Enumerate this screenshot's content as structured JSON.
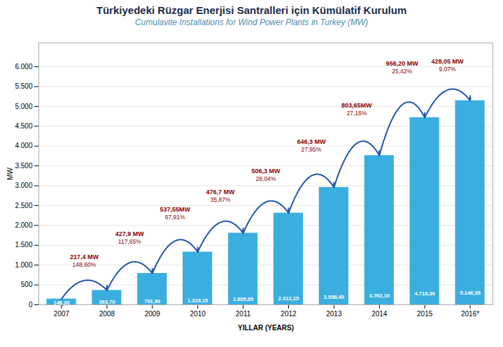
{
  "chart_data": {
    "type": "bar",
    "title": "Türkiyedeki Rüzgar Enerjisi Santralleri için Kümülatif Kurulum",
    "subtitle": "Cumulavite Installations for Wind Power Plants in Turkey (MW)",
    "xlabel": "YILLAR (YEARS)",
    "ylabel": "MW",
    "categories": [
      "2007",
      "2008",
      "2009",
      "2010",
      "2011",
      "2012",
      "2013",
      "2014",
      "2015",
      "2016*"
    ],
    "values": [
      146.3,
      363.7,
      791.6,
      1329.15,
      1805.85,
      2312.15,
      2958.45,
      3762.1,
      4718.3,
      5146.35
    ],
    "value_labels": [
      "146,30",
      "363,70",
      "791,60",
      "1.329,15",
      "1.805,85",
      "2.312,15",
      "2.958,45",
      "3.762,10",
      "4.718,30",
      "5.146,35"
    ],
    "data_labels": true,
    "color": "#3BAEE0",
    "ylim": [
      0,
      6600
    ],
    "yticks": [
      0,
      500,
      {
        "value": 1000,
        "label": "1.000"
      },
      {
        "value": 1500,
        "label": "1.500"
      },
      {
        "value": 2000,
        "label": "2.000"
      },
      {
        "value": 2500,
        "label": "2.500"
      },
      {
        "value": 3000,
        "label": "3.000"
      },
      {
        "value": 3500,
        "label": "3.500"
      },
      {
        "value": 4000,
        "label": "4.000"
      },
      {
        "value": 4500,
        "label": "4.500"
      },
      {
        "value": 5000,
        "label": "5.000"
      },
      {
        "value": 5500,
        "label": "5.500"
      },
      {
        "value": 6000,
        "label": "6.000"
      }
    ],
    "grid": true,
    "annotations": [
      {
        "from": "2007",
        "to": "2008",
        "text": "217,4 MW",
        "subtext": "148,60%",
        "color": "#8B0000",
        "arrow_color": "#2255AA"
      },
      {
        "from": "2008",
        "to": "2009",
        "text": "427,9 MW",
        "subtext": "117,65%",
        "color": "#8B0000",
        "arrow_color": "#2255AA"
      },
      {
        "from": "2009",
        "to": "2010",
        "text": "537,55MW",
        "subtext": "67,91%",
        "color": "#8B0000",
        "arrow_color": "#2255AA"
      },
      {
        "from": "2010",
        "to": "2011",
        "text": "476,7 MW",
        "subtext": "35,87%",
        "color": "#8B0000",
        "arrow_color": "#2255AA"
      },
      {
        "from": "2011",
        "to": "2012",
        "text": "506,3 MW",
        "subtext": "28,04%",
        "color": "#8B0000",
        "arrow_color": "#2255AA"
      },
      {
        "from": "2012",
        "to": "2013",
        "text": "646,3 MW",
        "subtext": "27,95%",
        "color": "#8B0000",
        "arrow_color": "#2255AA"
      },
      {
        "from": "2013",
        "to": "2014",
        "text": "803,65MW",
        "subtext": "27,16%",
        "color": "#8B0000",
        "arrow_color": "#2255AA"
      },
      {
        "from": "2014",
        "to": "2015",
        "text": "956,20 MW",
        "subtext": "25,42%",
        "color": "#8B0000",
        "arrow_color": "#2255AA"
      },
      {
        "from": "2015",
        "to": "2016*",
        "text": "428,05 MW",
        "subtext": "9,07%",
        "color": "#8B0000",
        "arrow_color": "#2255AA"
      }
    ]
  }
}
